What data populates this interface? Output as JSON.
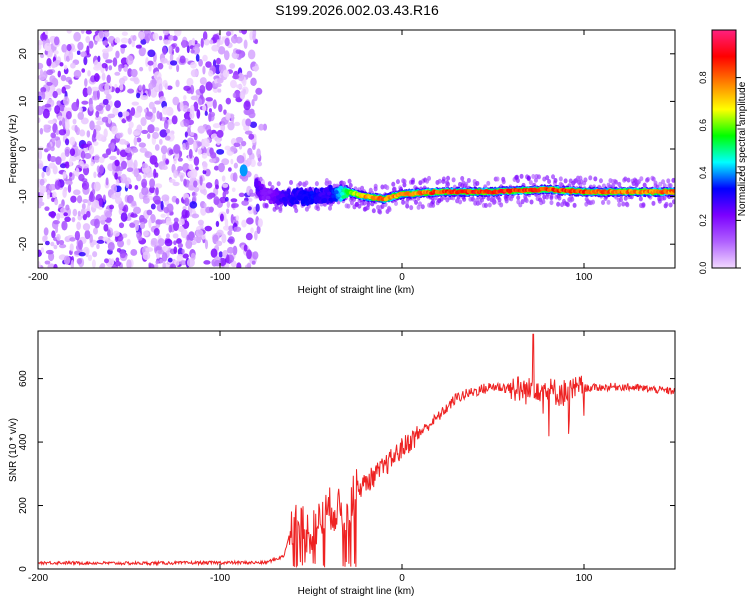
{
  "title": "S199.2026.002.03.43.R16",
  "chart_data": [
    {
      "type": "heatmap",
      "xlabel": "Height of straight line (km)",
      "ylabel": "Frequency (Hz)",
      "xlim": [
        -200,
        150
      ],
      "ylim": [
        -25,
        25
      ],
      "xticks": [
        -200,
        -100,
        0,
        100
      ],
      "yticks": [
        -20,
        -10,
        0,
        10,
        20
      ],
      "colorbar": {
        "label": "Normalized spectral amplitude",
        "range": [
          0,
          1
        ],
        "ticks": [
          "0.0",
          "0.2",
          "0.4",
          "0.6",
          "0.8"
        ],
        "colors": [
          "#f2d9ff",
          "#b060ff",
          "#7b00ff",
          "#0000ff",
          "#00ffff",
          "#00ff00",
          "#ffff00",
          "#ff8000",
          "#ff0000",
          "#ff2080"
        ]
      },
      "noise_region": {
        "x": [
          -200,
          -75
        ],
        "y": [
          -25,
          25
        ],
        "amplitude": 0.15
      },
      "ridge": [
        {
          "x": -87,
          "y": -4.5,
          "a": 0.4
        },
        {
          "x": -75,
          "y": -10,
          "a": 0.2
        },
        {
          "x": -65,
          "y": -10,
          "a": 0.3
        },
        {
          "x": -50,
          "y": -10,
          "a": 0.35
        },
        {
          "x": -40,
          "y": -9.5,
          "a": 0.3
        },
        {
          "x": -30,
          "y": -9,
          "a": 0.6
        },
        {
          "x": -20,
          "y": -10,
          "a": 0.8
        },
        {
          "x": -10,
          "y": -10.5,
          "a": 0.85
        },
        {
          "x": 0,
          "y": -9.5,
          "a": 0.8
        },
        {
          "x": 20,
          "y": -9,
          "a": 0.9
        },
        {
          "x": 50,
          "y": -9,
          "a": 0.95
        },
        {
          "x": 80,
          "y": -8.5,
          "a": 0.9
        },
        {
          "x": 100,
          "y": -9,
          "a": 0.9
        },
        {
          "x": 120,
          "y": -9,
          "a": 0.85
        },
        {
          "x": 150,
          "y": -9,
          "a": 0.85
        }
      ]
    },
    {
      "type": "line",
      "xlabel": "Height of straight line (km)",
      "ylabel": "SNR (10 * v/v)",
      "xlim": [
        -200,
        150
      ],
      "ylim": [
        0,
        750
      ],
      "xticks": [
        -200,
        -100,
        0,
        100
      ],
      "yticks": [
        0,
        200,
        400,
        600
      ],
      "color": "#ee2222",
      "series": [
        {
          "x": [
            -200,
            -150,
            -100,
            -75,
            -65,
            -60,
            -50,
            -40,
            -30,
            -25,
            -20,
            -10,
            0,
            10,
            20,
            30,
            40,
            50,
            60,
            70,
            72,
            80,
            90,
            100,
            120,
            150
          ],
          "y": [
            20,
            18,
            20,
            20,
            40,
            150,
            110,
            190,
            180,
            250,
            270,
            320,
            380,
            430,
            480,
            540,
            560,
            575,
            570,
            560,
            580,
            560,
            555,
            570,
            575,
            560
          ]
        }
      ]
    }
  ]
}
